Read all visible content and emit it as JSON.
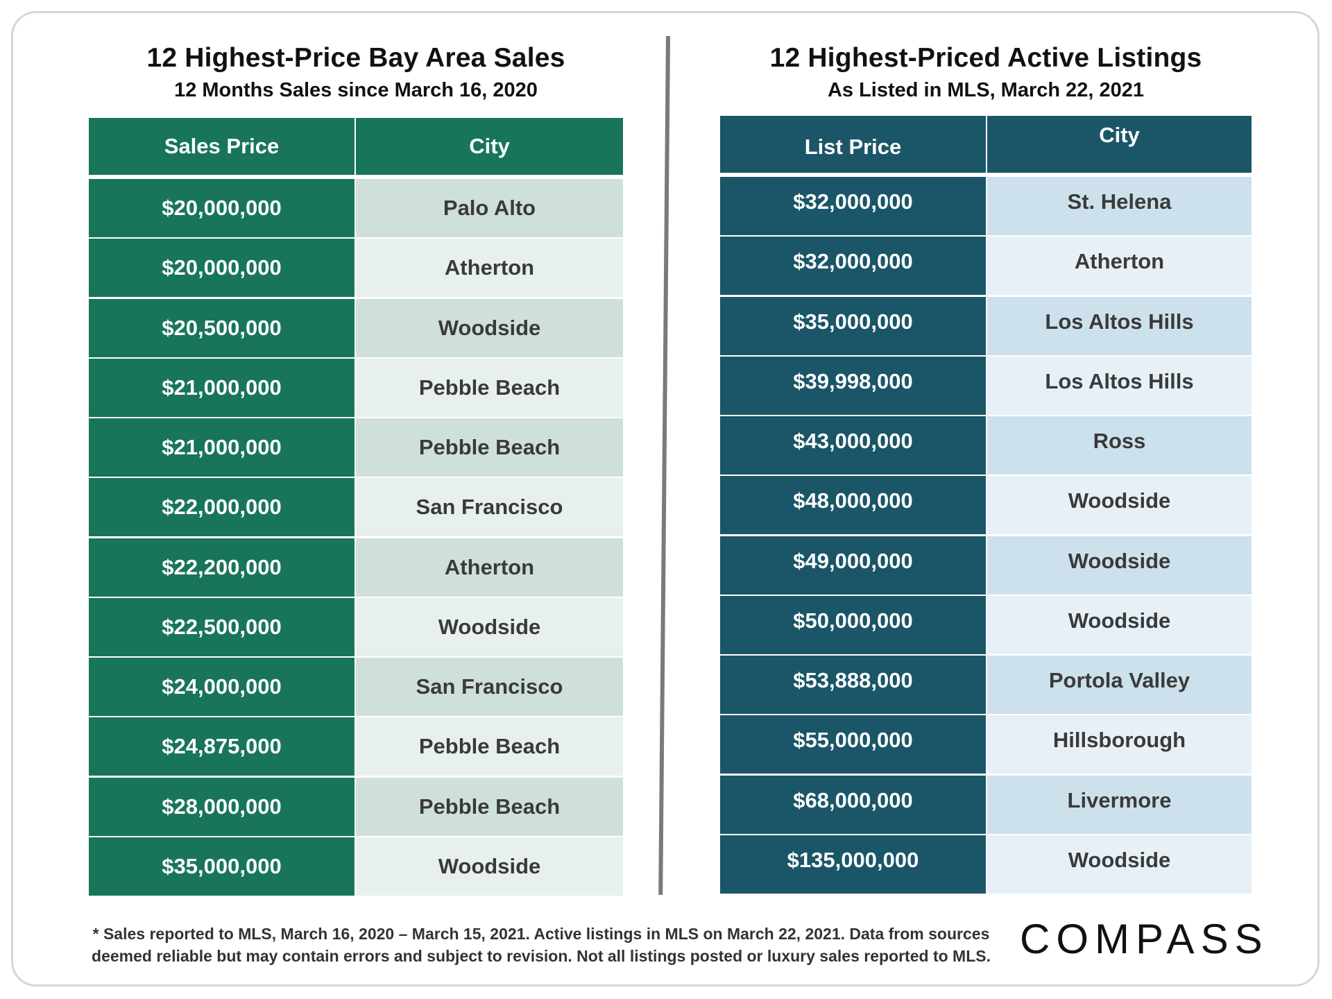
{
  "chart_data": [
    {
      "type": "table",
      "title": "12 Highest-Price Bay Area Sales",
      "subtitle": "12 Months Sales since March 16, 2020",
      "columns": [
        "Sales Price",
        "City"
      ],
      "rows": [
        [
          "$20,000,000",
          "Palo Alto"
        ],
        [
          "$20,000,000",
          "Atherton"
        ],
        [
          "$20,500,000",
          "Woodside"
        ],
        [
          "$21,000,000",
          "Pebble Beach"
        ],
        [
          "$21,000,000",
          "Pebble Beach"
        ],
        [
          "$22,000,000",
          "San Francisco"
        ],
        [
          "$22,200,000",
          "Atherton"
        ],
        [
          "$22,500,000",
          "Woodside"
        ],
        [
          "$24,000,000",
          "San Francisco"
        ],
        [
          "$24,875,000",
          "Pebble Beach"
        ],
        [
          "$28,000,000",
          "Pebble Beach"
        ],
        [
          "$35,000,000",
          "Woodside"
        ]
      ],
      "colors": {
        "header": "#18755a",
        "city_odd": "#cfe0d9",
        "city_even": "#e7f0ec"
      }
    },
    {
      "type": "table",
      "title": "12 Highest-Priced Active Listings",
      "subtitle": "As Listed in MLS, March 22, 2021",
      "columns": [
        "List Price",
        "City"
      ],
      "rows": [
        [
          "$32,000,000",
          "St. Helena"
        ],
        [
          "$32,000,000",
          "Atherton"
        ],
        [
          "$35,000,000",
          "Los Altos Hills"
        ],
        [
          "$39,998,000",
          "Los Altos Hills"
        ],
        [
          "$43,000,000",
          "Ross"
        ],
        [
          "$48,000,000",
          "Woodside"
        ],
        [
          "$49,000,000",
          "Woodside"
        ],
        [
          "$50,000,000",
          "Woodside"
        ],
        [
          "$53,888,000",
          "Portola Valley"
        ],
        [
          "$55,000,000",
          "Hillsborough"
        ],
        [
          "$68,000,000",
          "Livermore"
        ],
        [
          "$135,000,000",
          "Woodside"
        ]
      ],
      "colors": {
        "header": "#1a5667",
        "city_odd": "#cde1ec",
        "city_even": "#e7f0f6"
      }
    }
  ],
  "footnote": {
    "line1": "* Sales reported to MLS, March 16, 2020 – March 15, 2021. Active listings in MLS on March 22, 2021. Data from sources",
    "line2": "deemed reliable but may contain errors and subject to revision. Not all listings posted or luxury sales reported to MLS."
  },
  "logo": {
    "text": "COMPASS"
  }
}
